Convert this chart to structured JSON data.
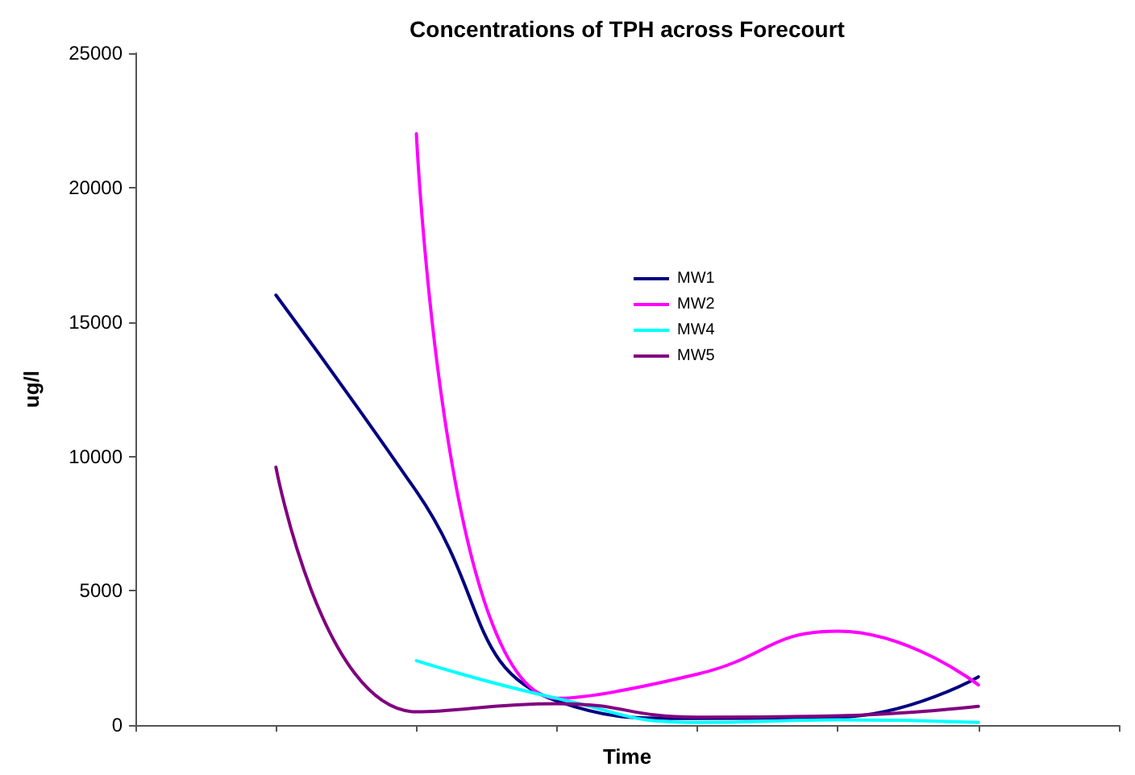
{
  "chart_data": {
    "type": "line",
    "title": "Concentrations of TPH across Forecourt",
    "xlabel": "Time",
    "ylabel": "ug/l",
    "categories": [
      null,
      null,
      null,
      null,
      null,
      null,
      null,
      null
    ],
    "series": [
      {
        "name": "MW1",
        "color": "#000080",
        "values": [
          null,
          16000,
          8700,
          900,
          250,
          300,
          1800,
          null
        ]
      },
      {
        "name": "MW2",
        "color": "#ff00ff",
        "values": [
          null,
          null,
          22000,
          1000,
          1900,
          3500,
          1500,
          null
        ]
      },
      {
        "name": "MW4",
        "color": "#00ffff",
        "values": [
          null,
          null,
          2400,
          1000,
          100,
          200,
          100,
          null
        ]
      },
      {
        "name": "MW5",
        "color": "#800080",
        "values": [
          null,
          9600,
          500,
          800,
          300,
          350,
          700,
          null
        ]
      }
    ],
    "ylim": [
      0,
      25000
    ],
    "yticks": [
      0,
      5000,
      10000,
      15000,
      20000,
      25000
    ],
    "grid": false,
    "legend": "top",
    "marker": "none",
    "line_style": "solid"
  }
}
